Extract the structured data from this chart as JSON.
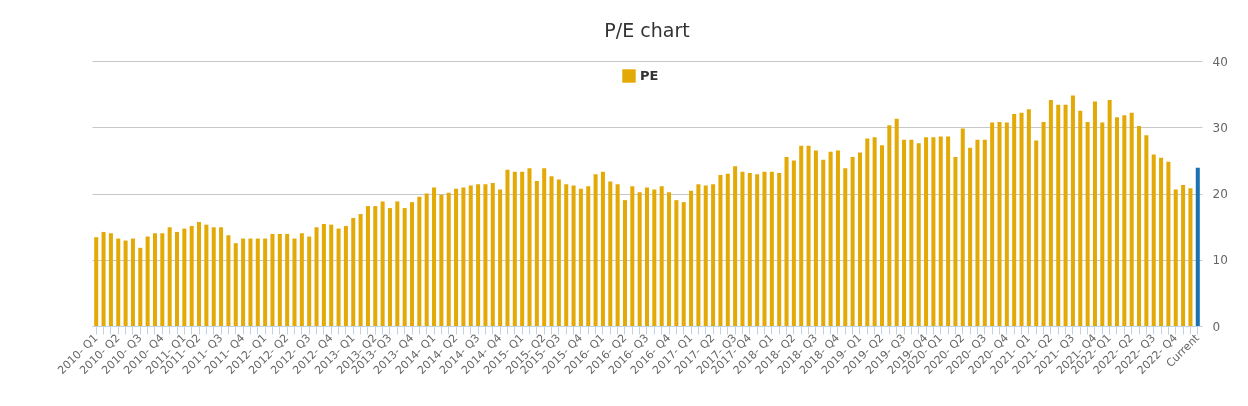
{
  "chart_data": {
    "type": "bar",
    "title": "P/E chart",
    "categories": [
      "2010- Q1",
      null,
      null,
      "2010- Q2",
      null,
      null,
      "2010- Q3",
      null,
      null,
      "2010- Q4",
      null,
      null,
      "2011- Q1",
      null,
      "2011- Q2",
      null,
      null,
      "2011- Q3",
      null,
      null,
      "2011- Q4",
      null,
      null,
      "2012- Q1",
      null,
      null,
      "2012- Q2",
      null,
      null,
      "2012- Q3",
      null,
      null,
      "2012- Q4",
      null,
      null,
      "2013- Q1",
      null,
      null,
      "2013- Q2",
      null,
      "2013- Q3",
      null,
      null,
      "2013- Q4",
      null,
      null,
      "2014- Q1",
      null,
      null,
      "2014- Q2",
      null,
      null,
      "2014- Q3",
      null,
      null,
      "2014- Q4",
      null,
      null,
      "2015- Q1",
      null,
      null,
      "2015- Q2",
      null,
      "2015- Q3",
      null,
      null,
      "2015- Q4",
      null,
      null,
      "2016- Q1",
      null,
      null,
      "2016- Q2",
      null,
      null,
      "2016- Q3",
      null,
      null,
      "2016- Q4",
      null,
      null,
      "2017- Q1",
      null,
      null,
      "2017- Q2",
      null,
      null,
      "2017- Q3",
      null,
      "2017- Q4",
      null,
      null,
      "2018- Q1",
      null,
      null,
      "2018- Q2",
      null,
      null,
      "2018- Q3",
      null,
      null,
      "2018- Q4",
      null,
      null,
      "2019- Q1",
      null,
      null,
      "2019- Q2",
      null,
      null,
      "2019- Q3",
      null,
      null,
      "2019- Q4",
      null,
      "2020- Q1",
      null,
      null,
      "2020- Q2",
      null,
      null,
      "2020- Q3",
      null,
      null,
      "2020- Q4",
      null,
      null,
      "2021- Q1",
      null,
      null,
      "2021- Q2",
      null,
      null,
      "2021- Q3",
      null,
      null,
      "2021- Q4",
      null,
      "2022- Q1",
      null,
      null,
      "2022- Q2",
      null,
      null,
      "2022- Q3",
      null,
      null,
      "2022- Q4",
      null,
      null,
      "Current"
    ],
    "series": [
      {
        "name": "PE",
        "color": "#e3aa07",
        "colors": [
          "#e3aa07",
          "#e3aa07",
          "#e3aa07",
          "#e3aa07",
          "#e3aa07",
          "#e3aa07",
          "#e3aa07",
          "#e3aa07",
          "#e3aa07",
          "#e3aa07",
          "#e3aa07",
          "#e3aa07",
          "#e3aa07",
          "#e3aa07",
          "#e3aa07",
          "#e3aa07",
          "#e3aa07",
          "#e3aa07",
          "#e3aa07",
          "#e3aa07",
          "#e3aa07",
          "#e3aa07",
          "#e3aa07",
          "#e3aa07",
          "#e3aa07",
          "#e3aa07",
          "#e3aa07",
          "#e3aa07",
          "#e3aa07",
          "#e3aa07",
          "#e3aa07",
          "#e3aa07",
          "#e3aa07",
          "#e3aa07",
          "#e3aa07",
          "#e3aa07",
          "#e3aa07",
          "#e3aa07",
          "#e3aa07",
          "#e3aa07",
          "#e3aa07",
          "#e3aa07",
          "#e3aa07",
          "#e3aa07",
          "#e3aa07",
          "#e3aa07",
          "#e3aa07",
          "#e3aa07",
          "#e3aa07",
          "#e3aa07",
          "#e3aa07",
          "#e3aa07",
          "#e3aa07",
          "#e3aa07",
          "#e3aa07",
          "#e3aa07",
          "#e3aa07",
          "#e3aa07",
          "#e3aa07",
          "#e3aa07",
          "#e3aa07",
          "#e3aa07",
          "#e3aa07",
          "#e3aa07",
          "#e3aa07",
          "#e3aa07",
          "#e3aa07",
          "#e3aa07",
          "#e3aa07",
          "#e3aa07",
          "#e3aa07",
          "#e3aa07",
          "#e3aa07",
          "#e3aa07",
          "#e3aa07",
          "#e3aa07",
          "#e3aa07",
          "#e3aa07",
          "#e3aa07",
          "#e3aa07",
          "#e3aa07",
          "#e3aa07",
          "#e3aa07",
          "#e3aa07",
          "#e3aa07",
          "#e3aa07",
          "#e3aa07",
          "#e3aa07",
          "#e3aa07",
          "#e3aa07",
          "#e3aa07",
          "#e3aa07",
          "#e3aa07",
          "#e3aa07",
          "#e3aa07",
          "#e3aa07",
          "#e3aa07",
          "#e3aa07",
          "#e3aa07",
          "#e3aa07",
          "#e3aa07",
          "#e3aa07",
          "#e3aa07",
          "#e3aa07",
          "#e3aa07",
          "#e3aa07",
          "#e3aa07",
          "#e3aa07",
          "#e3aa07",
          "#e3aa07",
          "#e3aa07",
          "#e3aa07",
          "#e3aa07",
          "#e3aa07",
          "#e3aa07",
          "#e3aa07",
          "#e3aa07",
          "#e3aa07",
          "#e3aa07",
          "#e3aa07",
          "#e3aa07",
          "#e3aa07",
          "#e3aa07",
          "#e3aa07",
          "#e3aa07",
          "#e3aa07",
          "#e3aa07",
          "#e3aa07",
          "#e3aa07",
          "#e3aa07",
          "#e3aa07",
          "#e3aa07",
          "#e3aa07",
          "#e3aa07",
          "#e3aa07",
          "#e3aa07",
          "#e3aa07",
          "#e3aa07",
          "#e3aa07",
          "#e3aa07",
          "#e3aa07",
          "#e3aa07",
          "#e3aa07",
          "#e3aa07",
          "#e3aa07",
          "#e3aa07",
          "#e3aa07",
          "#e3aa07",
          "#e3aa07",
          "#e3aa07",
          "#1a72b0"
        ],
        "values": [
          13.4,
          14.2,
          14.0,
          13.2,
          12.9,
          13.2,
          11.8,
          13.5,
          14.0,
          14.0,
          14.9,
          14.2,
          14.7,
          15.1,
          15.7,
          15.3,
          14.9,
          14.9,
          13.7,
          12.5,
          13.2,
          13.2,
          13.2,
          13.2,
          13.9,
          13.9,
          13.9,
          13.2,
          14.0,
          13.5,
          14.9,
          15.4,
          15.3,
          14.7,
          15.1,
          16.3,
          16.9,
          18.1,
          18.1,
          18.8,
          17.8,
          18.8,
          17.8,
          18.7,
          19.5,
          20.0,
          20.9,
          19.8,
          20.1,
          20.7,
          20.9,
          21.2,
          21.4,
          21.4,
          21.6,
          20.6,
          23.6,
          23.3,
          23.3,
          23.8,
          21.9,
          23.8,
          22.6,
          22.1,
          21.4,
          21.2,
          20.7,
          21.1,
          22.9,
          23.3,
          21.8,
          21.4,
          19.0,
          21.1,
          20.2,
          20.9,
          20.6,
          21.1,
          20.2,
          19.0,
          18.7,
          20.4,
          21.4,
          21.2,
          21.4,
          22.8,
          23.0,
          24.1,
          23.3,
          23.1,
          22.9,
          23.3,
          23.3,
          23.1,
          25.5,
          25.0,
          27.2,
          27.2,
          26.5,
          25.1,
          26.3,
          26.5,
          23.8,
          25.5,
          26.2,
          28.3,
          28.5,
          27.3,
          30.3,
          31.3,
          28.1,
          28.1,
          27.6,
          28.5,
          28.5,
          28.6,
          28.6,
          25.5,
          29.8,
          26.9,
          28.1,
          28.1,
          30.7,
          30.8,
          30.7,
          32.0,
          32.2,
          32.7,
          28.0,
          30.8,
          34.1,
          33.4,
          33.4,
          34.8,
          32.5,
          30.8,
          33.9,
          30.7,
          34.1,
          31.5,
          31.8,
          32.2,
          30.2,
          28.8,
          25.9,
          25.4,
          24.8,
          20.6,
          21.3,
          20.8,
          23.9
        ]
      }
    ],
    "ylim": [
      0,
      40
    ],
    "yticks": [
      0,
      10,
      20,
      30,
      40
    ],
    "grid": "y",
    "legend": "top"
  }
}
